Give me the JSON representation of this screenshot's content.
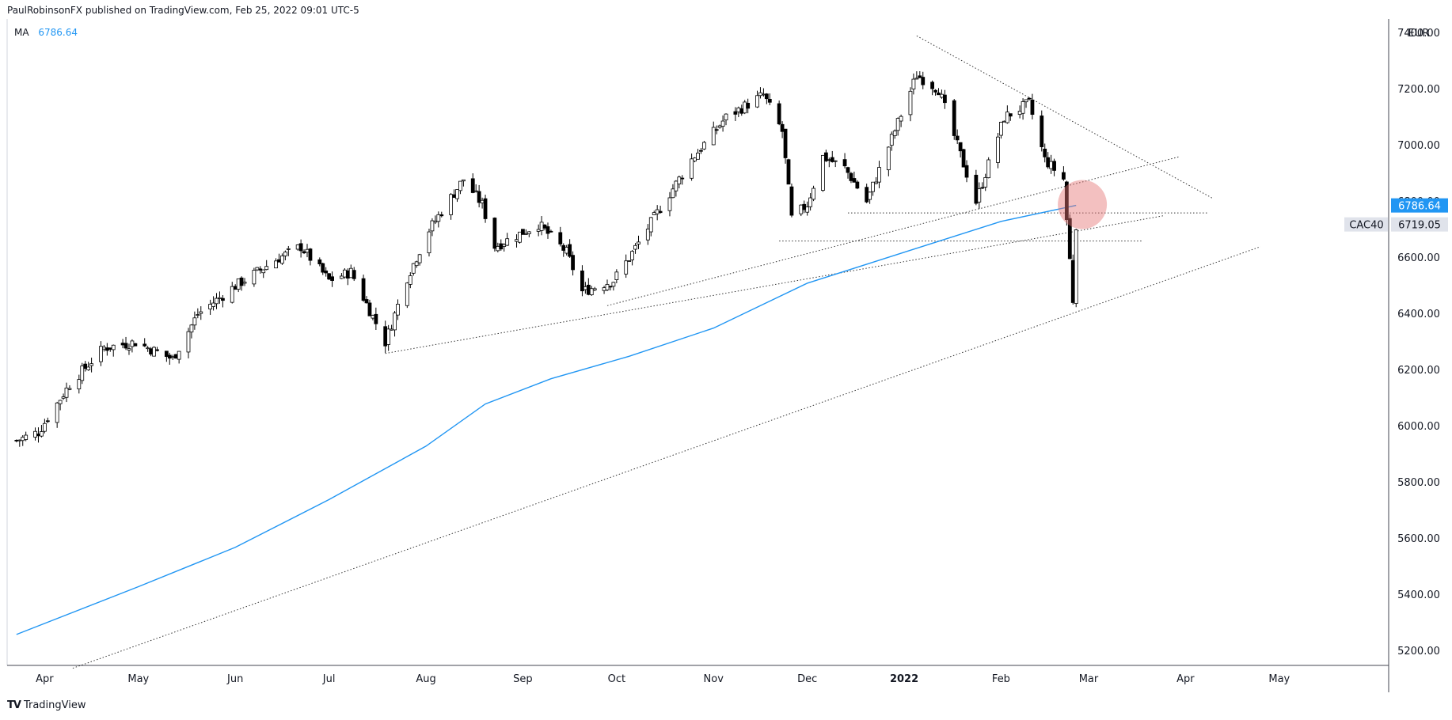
{
  "header": {
    "text": "PaulRobinsonFX published on TradingView.com, Feb 25, 2022 09:01 UTC-5"
  },
  "indicator": {
    "label": "MA",
    "value": "6786.64"
  },
  "axis": {
    "currency": "EUR"
  },
  "footer": {
    "brand": "TradingView",
    "logo_icon": "tradingview-logo-icon"
  },
  "colors": {
    "ma": "#2196f3",
    "candle_up": "#ffffff",
    "candle_down": "#000000",
    "ma_badge": "#2196f3",
    "highlight": "#e57373"
  },
  "chart_data": {
    "type": "line",
    "title": "",
    "symbol": "CAC40",
    "last_price": 6719.05,
    "ma_value": 6786.64,
    "ylim": [
      5150,
      7450
    ],
    "y_ticks": [
      7400,
      7200,
      7000,
      6800,
      6600,
      6400,
      6200,
      6000,
      5800,
      5600,
      5400,
      5200
    ],
    "y_tick_labels": [
      "7400.00",
      "7200.00",
      "7000.00",
      "6800.00",
      "6600.00",
      "6400.00",
      "6200.00",
      "6000.00",
      "5800.00",
      "5600.00",
      "5400.00",
      "5200.00"
    ],
    "x_labels": [
      "Apr",
      "May",
      "Jun",
      "Jul",
      "Aug",
      "Sep",
      "Oct",
      "Nov",
      "Dec",
      "2022",
      "Feb",
      "Mar",
      "Apr",
      "May"
    ],
    "price_path": {
      "name": "CAC40",
      "x": [
        "2021-03-23",
        "2021-03-30",
        "2021-04-09",
        "2021-04-20",
        "2021-04-30",
        "2021-05-12",
        "2021-05-20",
        "2021-06-01",
        "2021-06-15",
        "2021-06-22",
        "2021-07-01",
        "2021-07-08",
        "2021-07-19",
        "2021-07-26",
        "2021-08-02",
        "2021-08-13",
        "2021-08-19",
        "2021-08-23",
        "2021-09-06",
        "2021-09-15",
        "2021-09-20",
        "2021-09-30",
        "2021-10-05",
        "2021-10-14",
        "2021-10-25",
        "2021-11-05",
        "2021-11-17",
        "2021-11-23",
        "2021-11-26",
        "2021-12-01",
        "2021-12-06",
        "2021-12-13",
        "2021-12-20",
        "2022-01-05",
        "2022-01-12",
        "2022-01-24",
        "2022-02-02",
        "2022-02-10",
        "2022-02-15",
        "2022-02-21",
        "2022-02-24",
        "2022-02-25"
      ],
      "values": [
        5950,
        5980,
        6150,
        6280,
        6300,
        6240,
        6400,
        6500,
        6600,
        6640,
        6520,
        6550,
        6300,
        6530,
        6700,
        6880,
        6790,
        6640,
        6720,
        6620,
        6480,
        6520,
        6600,
        6760,
        6950,
        7100,
        7180,
        7050,
        6740,
        6790,
        6960,
        6920,
        6800,
        7250,
        7200,
        6800,
        7100,
        7150,
        6950,
        6880,
        6450,
        6719.05
      ]
    },
    "moving_average": {
      "name": "MA",
      "x": [
        "2021-03-23",
        "2021-05-01",
        "2021-06-01",
        "2021-07-01",
        "2021-08-01",
        "2021-08-20",
        "2021-09-10",
        "2021-10-05",
        "2021-11-01",
        "2021-12-01",
        "2022-01-01",
        "2022-02-01",
        "2022-02-25"
      ],
      "values": [
        5260,
        5430,
        5570,
        5740,
        5930,
        6080,
        6170,
        6250,
        6350,
        6510,
        6620,
        6730,
        6786.64
      ]
    },
    "trendlines": [
      {
        "kind": "dotted",
        "from": [
          "2021-07-19",
          6260
        ],
        "to": [
          "2022-03-25",
          6750
        ]
      },
      {
        "kind": "dotted",
        "from": [
          "2021-09-28",
          6430
        ],
        "to": [
          "2022-03-30",
          6960
        ]
      },
      {
        "kind": "dotted",
        "from": [
          "2021-04-10",
          5140
        ],
        "to": [
          "2022-04-25",
          6640
        ]
      },
      {
        "kind": "dotted",
        "from": [
          "2022-01-05",
          7390
        ],
        "to": [
          "2022-04-10",
          6810
        ]
      },
      {
        "kind": "dotted-horizontal",
        "from": [
          "2021-12-14",
          6760
        ],
        "to": [
          "2022-04-08",
          6760
        ]
      },
      {
        "kind": "dotted-horizontal",
        "from": [
          "2021-11-22",
          6660
        ],
        "to": [
          "2022-03-18",
          6660
        ]
      }
    ],
    "highlight": {
      "shape": "circle",
      "center": [
        "2022-02-27",
        6790
      ]
    },
    "grid": false
  }
}
